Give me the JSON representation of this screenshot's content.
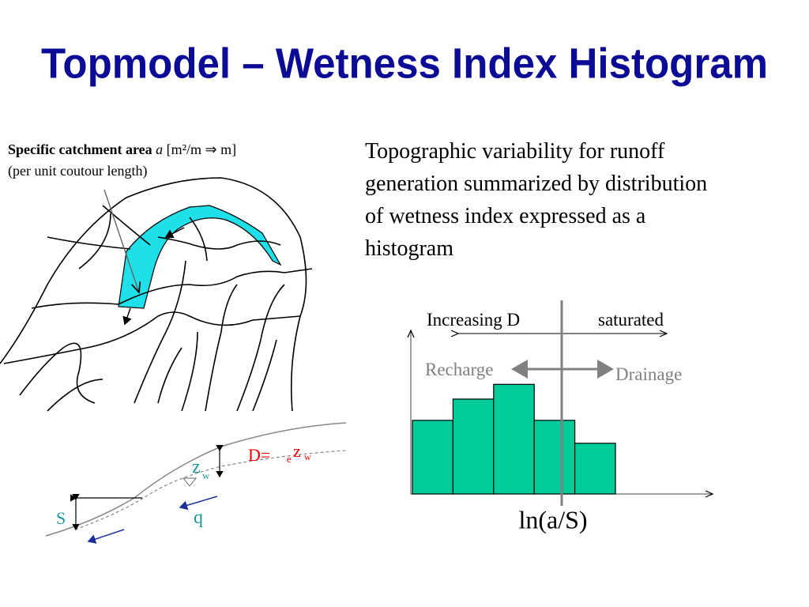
{
  "title": "Topmodel – Wetness Index Histogram",
  "map_label": {
    "bold": "Specific catchment area",
    "italic": "a",
    "rest": "[m²/m ⇒ m]",
    "line2": "(per unit coutour length)"
  },
  "paragraph": [
    "Topographic variability for runoff",
    "generation summarized by distribution",
    "of wetness index expressed as a",
    "histogram"
  ],
  "profile": {
    "d_label": "D=",
    "e": "e",
    "z": "z",
    "w": "w",
    "zw_z": "z",
    "zw_w": "w",
    "s": "S",
    "q": "q"
  },
  "histogram": {
    "type": "bar",
    "values": [
      45,
      58,
      67,
      45,
      31
    ],
    "color": "#00cc99",
    "ylim": [
      0,
      100
    ],
    "increasing": "Increasing D",
    "saturated": "saturated",
    "recharge": "Recharge",
    "drainage": "Drainage",
    "xlabel": "ln(a/S)"
  }
}
